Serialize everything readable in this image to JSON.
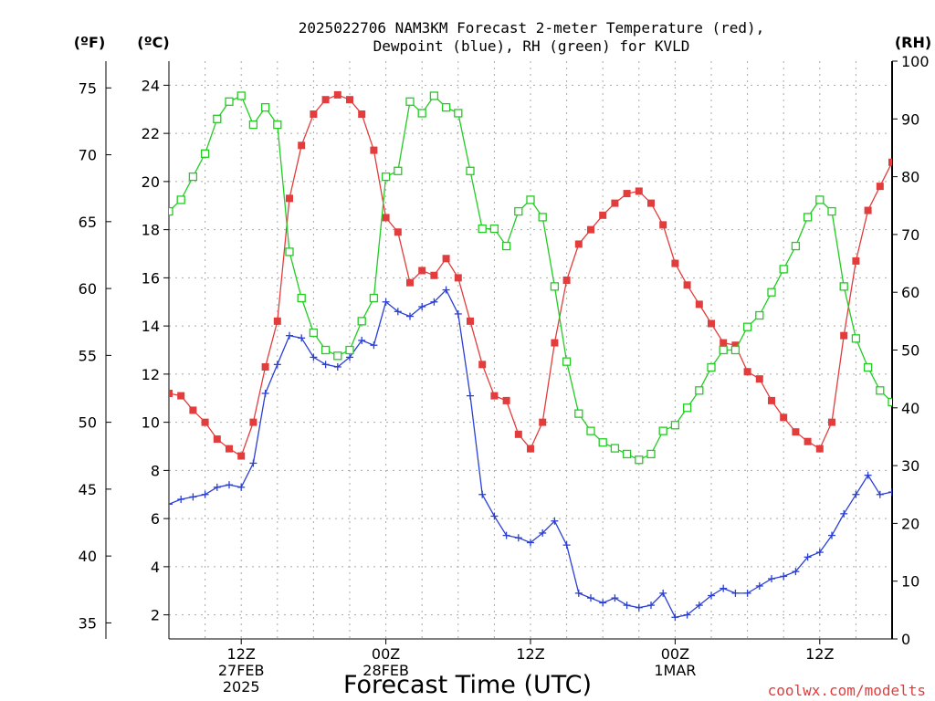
{
  "title_line1": "2025022706 NAM3KM Forecast 2-meter Temperature (red),",
  "title_line2": "Dewpoint (blue), RH (green) for KVLD",
  "left_outer_header": "(ºF)",
  "left_inner_header": "(ºC)",
  "right_header": "(RH)",
  "x_axis_title": "Forecast Time (UTC)",
  "credit": "coolwx.com/modelts",
  "x_ticks": [
    {
      "hour": 6,
      "lines": [
        "12Z",
        "27FEB",
        "2025"
      ]
    },
    {
      "hour": 18,
      "lines": [
        "00Z",
        "28FEB"
      ]
    },
    {
      "hour": 30,
      "lines": [
        "12Z"
      ]
    },
    {
      "hour": 42,
      "lines": [
        "00Z",
        "1MAR"
      ]
    },
    {
      "hour": 54,
      "lines": [
        "12Z"
      ]
    }
  ],
  "fahrenheit_ticks": [
    "35",
    "40",
    "45",
    "50",
    "55",
    "60",
    "65",
    "70",
    "75"
  ],
  "celsius_ticks": [
    "2",
    "4",
    "6",
    "8",
    "10",
    "12",
    "14",
    "16",
    "18",
    "20",
    "22",
    "24"
  ],
  "rh_ticks": [
    "0",
    "10",
    "20",
    "30",
    "40",
    "50",
    "60",
    "70",
    "80",
    "90",
    "100"
  ],
  "colors": {
    "temperature": "#e23c3c",
    "dewpoint": "#2a3fd6",
    "rh": "#22cc22",
    "axis": "#000000",
    "grid": "#a8a8a8",
    "credit": "#e23c3c"
  },
  "chart_data": {
    "type": "line",
    "x_unit": "forecast hour from 2025-02-27 06Z",
    "x_range": [
      0,
      60
    ],
    "y_left_range_celsius": [
      1,
      25
    ],
    "y_left_fahrenheit_ticks": [
      35,
      40,
      45,
      50,
      55,
      60,
      65,
      70,
      75
    ],
    "y_right_range_rh": [
      0,
      100
    ],
    "grid": true,
    "series": [
      {
        "name": "Temperature",
        "axis": "celsius",
        "marker": "filled-square",
        "x": [
          0,
          1,
          2,
          3,
          4,
          5,
          6,
          7,
          8,
          9,
          10,
          11,
          12,
          13,
          14,
          15,
          16,
          17,
          18,
          19,
          20,
          21,
          22,
          23,
          24,
          25,
          26,
          27,
          28,
          29,
          30,
          31,
          32,
          33,
          34,
          35,
          36,
          37,
          38,
          39,
          40,
          41,
          42,
          43,
          44,
          45,
          46,
          47,
          48,
          49,
          50,
          51,
          52,
          53,
          54,
          55,
          56,
          57,
          58,
          59,
          60
        ],
        "values": [
          11.2,
          11.1,
          10.5,
          10.0,
          9.3,
          8.9,
          8.6,
          10.0,
          12.3,
          14.2,
          19.3,
          21.5,
          22.8,
          23.4,
          23.6,
          23.4,
          22.8,
          21.3,
          18.5,
          17.9,
          15.8,
          16.3,
          16.1,
          16.8,
          16.0,
          14.2,
          12.4,
          11.1,
          10.9,
          9.5,
          8.9,
          10.0,
          13.3,
          15.9,
          17.4,
          18.0,
          18.6,
          19.1,
          19.5,
          19.6,
          19.1,
          18.2,
          16.6,
          15.7,
          14.9,
          14.1,
          13.3,
          13.2,
          12.1,
          11.8,
          10.9,
          10.2,
          9.6,
          9.2,
          8.9,
          10.0,
          13.6,
          16.7,
          18.8,
          19.8,
          20.8
        ]
      },
      {
        "name": "Dewpoint",
        "axis": "celsius",
        "marker": "plus",
        "x": [
          0,
          1,
          2,
          3,
          4,
          5,
          6,
          7,
          8,
          9,
          10,
          11,
          12,
          13,
          14,
          15,
          16,
          17,
          18,
          19,
          20,
          21,
          22,
          23,
          24,
          25,
          26,
          27,
          28,
          29,
          30,
          31,
          32,
          33,
          34,
          35,
          36,
          37,
          38,
          39,
          40,
          41,
          42,
          43,
          44,
          45,
          46,
          47,
          48,
          49,
          50,
          51,
          52,
          53,
          54,
          55,
          56,
          57,
          58,
          59,
          60
        ],
        "values": [
          6.6,
          6.8,
          6.9,
          7.0,
          7.3,
          7.4,
          7.3,
          8.3,
          11.2,
          12.4,
          13.6,
          13.5,
          12.7,
          12.4,
          12.3,
          12.7,
          13.4,
          13.2,
          15.0,
          14.6,
          14.4,
          14.8,
          15.0,
          15.5,
          14.5,
          11.1,
          7.0,
          6.1,
          5.3,
          5.2,
          5.0,
          5.4,
          5.9,
          4.9,
          2.9,
          2.7,
          2.5,
          2.7,
          2.4,
          2.3,
          2.4,
          2.9,
          1.9,
          2.0,
          2.4,
          2.8,
          3.1,
          2.9,
          2.9,
          3.2,
          3.5,
          3.6,
          3.8,
          4.4,
          4.6,
          5.3,
          6.2,
          7.0,
          7.8,
          7.0,
          7.1
        ]
      },
      {
        "name": "RH",
        "axis": "rh",
        "marker": "open-square",
        "x": [
          0,
          1,
          2,
          3,
          4,
          5,
          6,
          7,
          8,
          9,
          10,
          11,
          12,
          13,
          14,
          15,
          16,
          17,
          18,
          19,
          20,
          21,
          22,
          23,
          24,
          25,
          26,
          27,
          28,
          29,
          30,
          31,
          32,
          33,
          34,
          35,
          36,
          37,
          38,
          39,
          40,
          41,
          42,
          43,
          44,
          45,
          46,
          47,
          48,
          49,
          50,
          51,
          52,
          53,
          54,
          55,
          56,
          57,
          58,
          59,
          60
        ],
        "values": [
          74,
          76,
          80,
          84,
          90,
          93,
          94,
          89,
          92,
          89,
          67,
          59,
          53,
          50,
          49,
          50,
          55,
          59,
          80,
          81,
          93,
          91,
          94,
          92,
          91,
          81,
          71,
          71,
          68,
          74,
          76,
          73,
          61,
          48,
          39,
          36,
          34,
          33,
          32,
          31,
          32,
          36,
          37,
          40,
          43,
          47,
          50,
          50,
          54,
          56,
          60,
          64,
          68,
          73,
          76,
          74,
          61,
          52,
          47,
          43,
          41
        ]
      }
    ]
  }
}
